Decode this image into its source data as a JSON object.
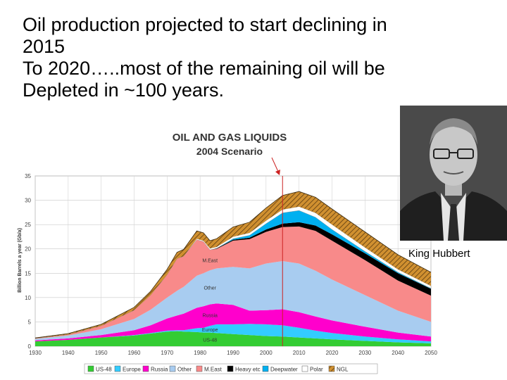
{
  "headline": {
    "lines": [
      "Oil production projected to start declining in",
      "2015",
      "To 2020…..most of the remaining oil will be",
      "Depleted in ~100 years."
    ]
  },
  "portrait": {
    "caption": "King Hubbert"
  },
  "chart_data": {
    "type": "area",
    "title": "OIL AND GAS LIQUIDS",
    "subtitle": "2004 Scenario",
    "ylabel": "Billion Barrels a year (Gb/a)",
    "xlabel": "",
    "ylim": [
      0,
      35
    ],
    "xlim": [
      1930,
      2050
    ],
    "yticks": [
      "0",
      "5",
      "10",
      "15",
      "20",
      "25",
      "30",
      "35"
    ],
    "xticks": [
      "1930",
      "1940",
      "1950",
      "1960",
      "1970",
      "1980",
      "1990",
      "2000",
      "2010",
      "2020",
      "2030",
      "2040",
      "2050"
    ],
    "peak_marker_year": 2005,
    "grid": true,
    "stacked": true,
    "legend_position": "bottom",
    "x": [
      1930,
      1940,
      1950,
      1960,
      1965,
      1970,
      1973,
      1975,
      1979,
      1981,
      1983,
      1985,
      1990,
      1995,
      2000,
      2005,
      2010,
      2015,
      2020,
      2030,
      2040,
      2050
    ],
    "series": [
      {
        "name": "US-48",
        "color": "#33cc33",
        "values": [
          1.0,
          1.3,
          1.8,
          2.2,
          2.6,
          3.0,
          3.1,
          3.0,
          2.9,
          2.8,
          2.8,
          2.7,
          2.5,
          2.3,
          2.1,
          2.0,
          1.8,
          1.6,
          1.4,
          1.1,
          0.8,
          0.6
        ]
      },
      {
        "name": "Europe",
        "color": "#33ccff",
        "values": [
          0.0,
          0.0,
          0.0,
          0.1,
          0.1,
          0.2,
          0.2,
          0.3,
          0.8,
          1.0,
          1.4,
          1.8,
          2.0,
          2.3,
          2.4,
          2.3,
          2.0,
          1.6,
          1.3,
          0.9,
          0.6,
          0.4
        ]
      },
      {
        "name": "Russia",
        "color": "#ff00cc",
        "values": [
          0.2,
          0.3,
          0.5,
          1.0,
          1.6,
          2.5,
          3.0,
          3.4,
          4.2,
          4.4,
          4.4,
          4.3,
          4.0,
          2.7,
          2.9,
          3.3,
          3.2,
          2.9,
          2.6,
          2.0,
          1.4,
          1.0
        ]
      },
      {
        "name": "Other",
        "color": "#a8ccf0",
        "values": [
          0.3,
          0.6,
          1.2,
          2.3,
          3.2,
          4.3,
          5.1,
          5.5,
          6.6,
          6.8,
          7.0,
          7.2,
          7.8,
          8.7,
          9.6,
          9.9,
          10.0,
          9.4,
          8.4,
          6.5,
          4.5,
          3.0
        ]
      },
      {
        "name": "M.East",
        "color": "#f88a8a",
        "values": [
          0.1,
          0.2,
          0.7,
          1.8,
          3.0,
          4.7,
          6.6,
          6.3,
          7.4,
          6.5,
          4.2,
          4.0,
          5.4,
          6.0,
          6.5,
          7.0,
          7.6,
          8.2,
          8.0,
          7.2,
          6.2,
          5.4
        ]
      },
      {
        "name": "Heavy etc",
        "color": "#000000",
        "values": [
          0.0,
          0.0,
          0.0,
          0.0,
          0.0,
          0.0,
          0.0,
          0.0,
          0.0,
          0.0,
          0.0,
          0.1,
          0.2,
          0.3,
          0.5,
          0.7,
          0.9,
          1.1,
          1.3,
          1.4,
          1.5,
          1.4
        ]
      },
      {
        "name": "Deepwater",
        "color": "#00b0f0",
        "values": [
          0.0,
          0.0,
          0.0,
          0.0,
          0.0,
          0.0,
          0.0,
          0.0,
          0.0,
          0.0,
          0.0,
          0.0,
          0.2,
          0.5,
          1.2,
          2.2,
          2.4,
          1.7,
          1.0,
          0.4,
          0.2,
          0.1
        ]
      },
      {
        "name": "Polar",
        "color": "#ffffff",
        "values": [
          0.0,
          0.0,
          0.0,
          0.0,
          0.0,
          0.0,
          0.0,
          0.0,
          0.2,
          0.2,
          0.3,
          0.3,
          0.4,
          0.5,
          0.6,
          0.7,
          0.8,
          0.9,
          1.0,
          0.8,
          0.6,
          0.5
        ]
      },
      {
        "name": "NGL",
        "color": "#d09030",
        "values": [
          0.1,
          0.2,
          0.3,
          0.6,
          0.8,
          1.1,
          1.3,
          1.4,
          1.6,
          1.6,
          1.6,
          1.7,
          2.0,
          2.2,
          2.6,
          2.9,
          3.1,
          3.2,
          3.2,
          3.2,
          3.0,
          2.8
        ]
      }
    ],
    "area_labels": [
      {
        "text": "M.East",
        "series": "M.East",
        "x": 1983
      },
      {
        "text": "Other",
        "series": "Other",
        "x": 1983
      },
      {
        "text": "Russia",
        "series": "Russia",
        "x": 1983
      },
      {
        "text": "Europe",
        "series": "Europe",
        "x": 1983
      },
      {
        "text": "US-48",
        "series": "US-48",
        "x": 1983
      }
    ],
    "legend": [
      "US-48",
      "Europe",
      "Russia",
      "Other",
      "M.East",
      "Heavy etc",
      "Deepwater",
      "Polar",
      "NGL"
    ]
  }
}
